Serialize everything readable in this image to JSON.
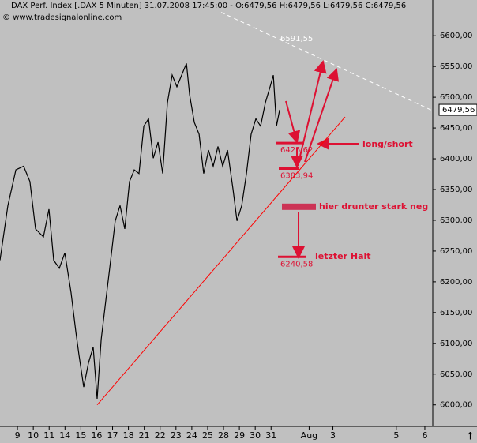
{
  "chart_data": {
    "type": "line",
    "title": "DAX Perf. Index [.DAX  5 Minuten] 31.07.2008 17:45:00 - O:6479,56 H:6479,56 L:6479,56 C:6479,56",
    "subtitle": "© www.tradesignalonline.com",
    "x": [
      -1.1,
      -0.6,
      -0.1,
      0.39,
      0.79,
      1.14,
      1.64,
      1.99,
      2.29,
      2.64,
      2.99,
      3.38,
      3.68,
      3.88,
      4.18,
      4.48,
      4.78,
      5.03,
      5.28,
      5.58,
      5.88,
      6.17,
      6.47,
      6.77,
      7.07,
      7.37,
      7.67,
      7.97,
      8.27,
      8.57,
      8.87,
      9.16,
      9.46,
      9.76,
      10.06,
      10.36,
      10.66,
      10.86,
      11.16,
      11.46,
      11.75,
      12.05,
      12.35,
      12.65,
      12.95,
      13.25,
      13.6,
      13.85,
      14.15,
      14.45,
      14.74,
      15.04,
      15.34,
      15.64,
      15.94,
      16.14,
      16.34,
      16.54
    ],
    "values": [
      6235,
      6324,
      6382,
      6388,
      6363,
      6286,
      6273,
      6318,
      6235,
      6222,
      6247,
      6183,
      6119,
      6081,
      6029,
      6068,
      6094,
      6010,
      6106,
      6171,
      6235,
      6299,
      6324,
      6286,
      6363,
      6382,
      6376,
      6453,
      6465,
      6401,
      6427,
      6376,
      6491,
      6536,
      6517,
      6536,
      6555,
      6504,
      6459,
      6440,
      6376,
      6414,
      6388,
      6420,
      6388,
      6414,
      6350,
      6299,
      6324,
      6376,
      6440,
      6465,
      6453,
      6491,
      6517,
      6536,
      6453,
      6479.56
    ],
    "color": "#000000",
    "xlim": [
      -1.1,
      26.2
    ],
    "xticks": [
      {
        "value": 0,
        "label": "9"
      },
      {
        "value": 1,
        "label": "10"
      },
      {
        "value": 2,
        "label": "11"
      },
      {
        "value": 3,
        "label": "14"
      },
      {
        "value": 4,
        "label": "15"
      },
      {
        "value": 5,
        "label": "16"
      },
      {
        "value": 6,
        "label": "17"
      },
      {
        "value": 7,
        "label": "18"
      },
      {
        "value": 8,
        "label": "21"
      },
      {
        "value": 9,
        "label": "22"
      },
      {
        "value": 10,
        "label": "23"
      },
      {
        "value": 11,
        "label": "24"
      },
      {
        "value": 12,
        "label": "25"
      },
      {
        "value": 13,
        "label": "28"
      },
      {
        "value": 14,
        "label": "29"
      },
      {
        "value": 15,
        "label": "30"
      },
      {
        "value": 16,
        "label": "31"
      },
      {
        "value": 18.4,
        "label": "Aug"
      },
      {
        "value": 19.9,
        "label": "3"
      },
      {
        "value": 23.9,
        "label": "5"
      },
      {
        "value": 25.7,
        "label": "6"
      }
    ],
    "ylim": [
      5965,
      6658
    ],
    "yticks": [
      {
        "value": 6000,
        "label": "6000,00"
      },
      {
        "value": 6050,
        "label": "6050,00"
      },
      {
        "value": 6100,
        "label": "6100,00"
      },
      {
        "value": 6150,
        "label": "6150,00"
      },
      {
        "value": 6200,
        "label": "6200,00"
      },
      {
        "value": 6250,
        "label": "6250,00"
      },
      {
        "value": 6300,
        "label": "6300,00"
      },
      {
        "value": 6350,
        "label": "6350,00"
      },
      {
        "value": 6400,
        "label": "6400,00"
      },
      {
        "value": 6450,
        "label": "6450,00"
      },
      {
        "value": 6500,
        "label": "6500,00"
      },
      {
        "value": 6550,
        "label": "6550,00"
      },
      {
        "value": 6600,
        "label": "6600,00"
      }
    ],
    "last_value": {
      "value": 6479.56,
      "label": "6479,56"
    },
    "levels": [
      {
        "value": 6591.55,
        "label": "6591,55"
      },
      {
        "value": 6425.62,
        "label": "6425,62"
      },
      {
        "value": 6383.94,
        "label": "6383,94"
      },
      {
        "value": 6240.58,
        "label": "6240,58"
      }
    ],
    "trendline": {
      "x": [
        5.03,
        20.67
      ],
      "values": [
        6000,
        6468
      ],
      "color": "#ff0000"
    },
    "resistance": {
      "x": [
        12.85,
        26.2
      ],
      "values": [
        6638,
        6478
      ],
      "color": "#ffffff"
    },
    "zone": {
      "value": 6322,
      "color": "#cc3355"
    },
    "annotations": [
      "long/short",
      "hier drunter stark neg",
      "letzter Halt"
    ],
    "annotation_color": "#dd1133"
  }
}
